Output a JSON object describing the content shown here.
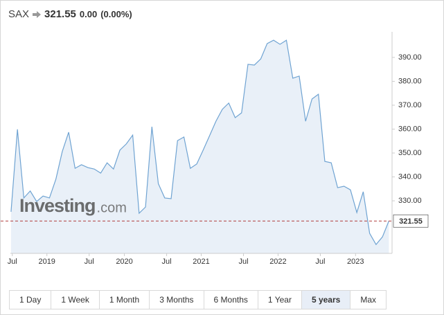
{
  "header": {
    "symbol": "SAX",
    "price": "321.55",
    "change": "0.00",
    "change_percent": "(0.00%)"
  },
  "chart_data": {
    "type": "line",
    "x": [
      0,
      1,
      2,
      3,
      4,
      5,
      6,
      7,
      8,
      9,
      10,
      11,
      12,
      13,
      14,
      15,
      16,
      17,
      18,
      19,
      20,
      21,
      22,
      23,
      24,
      25,
      26,
      27,
      28,
      29,
      30,
      31,
      32,
      33,
      34,
      35,
      36,
      37,
      38,
      39,
      40,
      41,
      42,
      43,
      44,
      45,
      46,
      47,
      48,
      49,
      50,
      51,
      52,
      53,
      54,
      55,
      56,
      57,
      58,
      59
    ],
    "values": [
      325.4,
      359.9,
      331.2,
      334.1,
      329.7,
      332.0,
      331.2,
      339.0,
      350.6,
      358.7,
      343.6,
      345.1,
      343.9,
      343.3,
      341.6,
      345.9,
      343.3,
      351.2,
      353.8,
      357.5,
      324.8,
      327.4,
      361.0,
      337.2,
      331.2,
      330.9,
      355.2,
      356.7,
      343.6,
      345.4,
      351.2,
      357.2,
      363.3,
      368.3,
      370.9,
      364.8,
      366.8,
      387.1,
      386.8,
      389.4,
      395.8,
      397.2,
      395.5,
      397.2,
      381.3,
      382.2,
      363.3,
      372.6,
      374.6,
      346.5,
      345.9,
      335.5,
      336.1,
      334.6,
      325.1,
      333.8,
      316.4,
      311.7,
      314.9,
      321.55
    ],
    "color": "#6fa3d2",
    "current_value": 321.55,
    "watermark": "Investing",
    "watermark_suffix": ".com",
    "xlim": [
      -0.1,
      59.5
    ],
    "xticks": [
      {
        "value": 0.2,
        "label": "Jul"
      },
      {
        "value": 5.6,
        "label": "2019"
      },
      {
        "value": 12.2,
        "label": "Jul"
      },
      {
        "value": 17.7,
        "label": "2020"
      },
      {
        "value": 24.3,
        "label": "Jul"
      },
      {
        "value": 29.7,
        "label": "2021"
      },
      {
        "value": 36.3,
        "label": "Jul"
      },
      {
        "value": 41.7,
        "label": "2022"
      },
      {
        "value": 48.3,
        "label": "Jul"
      },
      {
        "value": 53.8,
        "label": "2023"
      }
    ],
    "ylim": [
      308,
      400.7
    ],
    "yticks": [
      {
        "value": 330,
        "label": "330.00"
      },
      {
        "value": 340,
        "label": "340.00"
      },
      {
        "value": 350,
        "label": "350.00"
      },
      {
        "value": 360,
        "label": "360.00"
      },
      {
        "value": 370,
        "label": "370.00"
      },
      {
        "value": 380,
        "label": "380.00"
      },
      {
        "value": 390,
        "label": "390.00"
      }
    ]
  },
  "ranges": {
    "buttons": [
      "1 Day",
      "1 Week",
      "1 Month",
      "3 Months",
      "6 Months",
      "1 Year",
      "5 years",
      "Max"
    ],
    "selected": 6
  }
}
